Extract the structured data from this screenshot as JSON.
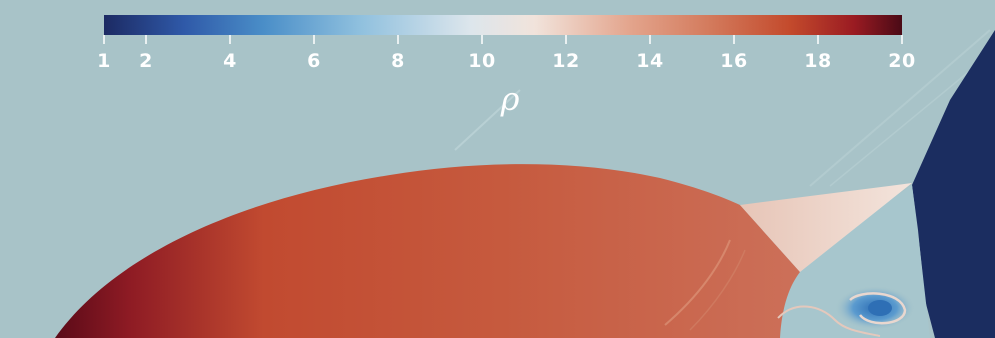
{
  "colorbar": {
    "title": "ρ",
    "min": 1,
    "max": 20,
    "ticks": [
      "1",
      "2",
      "4",
      "6",
      "8",
      "10",
      "12",
      "14",
      "16",
      "18",
      "20"
    ],
    "colors": [
      "#1c2a63",
      "#2f59a8",
      "#4a8ec8",
      "#8fc0de",
      "#dde6ec",
      "#f1e3db",
      "#e3a48c",
      "#d37a5c",
      "#c34a2c",
      "#9a1b22",
      "#4a0a16"
    ]
  },
  "field": {
    "background_color": "#a8c3c8",
    "shock_region_color": "#c8664a",
    "high_density_color": "#8e1b24",
    "light_wedge_color": "#ecd6cc",
    "low_density_color": "#1b2d60",
    "vortex_color": "#3c7ebf"
  }
}
